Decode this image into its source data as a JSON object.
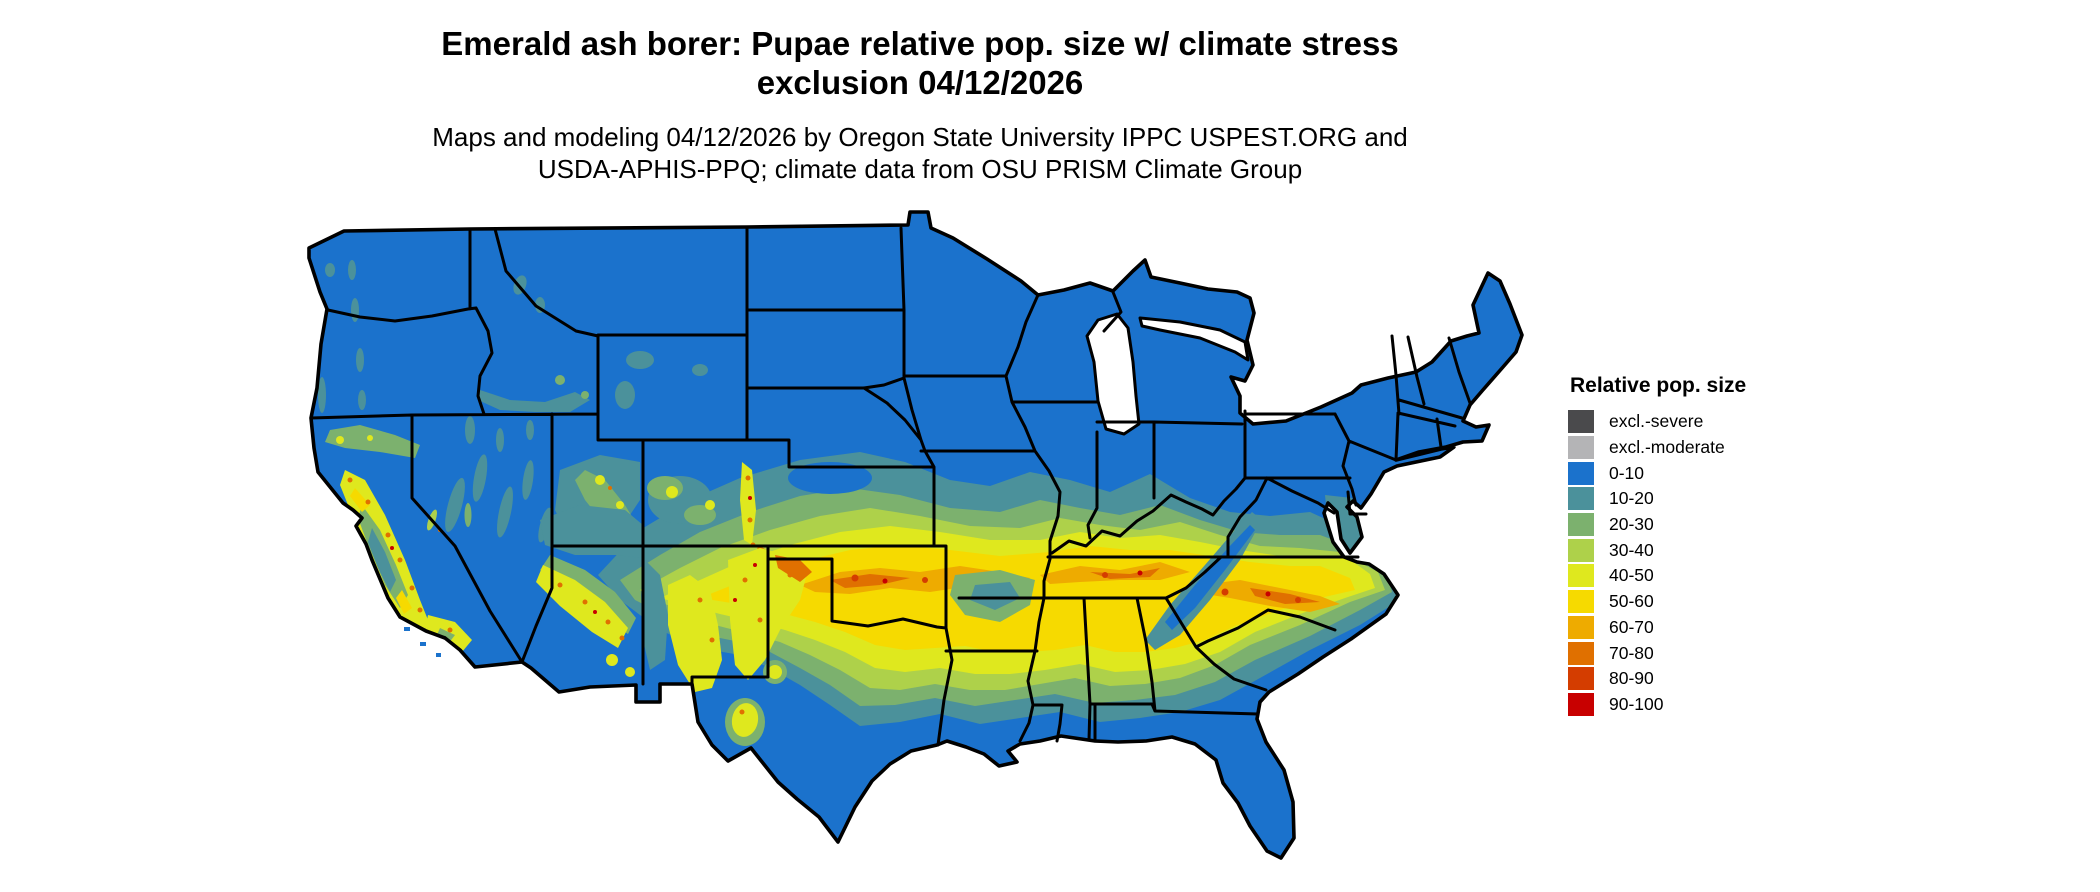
{
  "header": {
    "title_line1": "Emerald ash borer: Pupae relative pop. size w/ climate stress",
    "title_line2": "exclusion 04/12/2026",
    "subtitle_line1": "Maps and modeling 04/12/2026 by Oregon State University IPPC USPEST.ORG and",
    "subtitle_line2": "USDA-APHIS-PPQ; climate data from OSU PRISM Climate Group"
  },
  "legend": {
    "title": "Relative pop. size",
    "items": [
      {
        "label": "excl.-severe",
        "color": "#4a4a4c"
      },
      {
        "label": "excl.-moderate",
        "color": "#b4b4b6"
      },
      {
        "label": "0-10",
        "color": "#1b72cc"
      },
      {
        "label": "10-20",
        "color": "#4b919b"
      },
      {
        "label": "20-30",
        "color": "#7cb16e"
      },
      {
        "label": "30-40",
        "color": "#aed14a"
      },
      {
        "label": "40-50",
        "color": "#dfe81e"
      },
      {
        "label": "50-60",
        "color": "#f6da00"
      },
      {
        "label": "60-70",
        "color": "#eeab00"
      },
      {
        "label": "70-80",
        "color": "#e07000"
      },
      {
        "label": "80-90",
        "color": "#d43d00"
      },
      {
        "label": "90-100",
        "color": "#c80000"
      }
    ]
  },
  "map": {
    "land_base_color": "#1b72cc",
    "state_border_color": "#000000",
    "water_color": "#ffffff"
  }
}
